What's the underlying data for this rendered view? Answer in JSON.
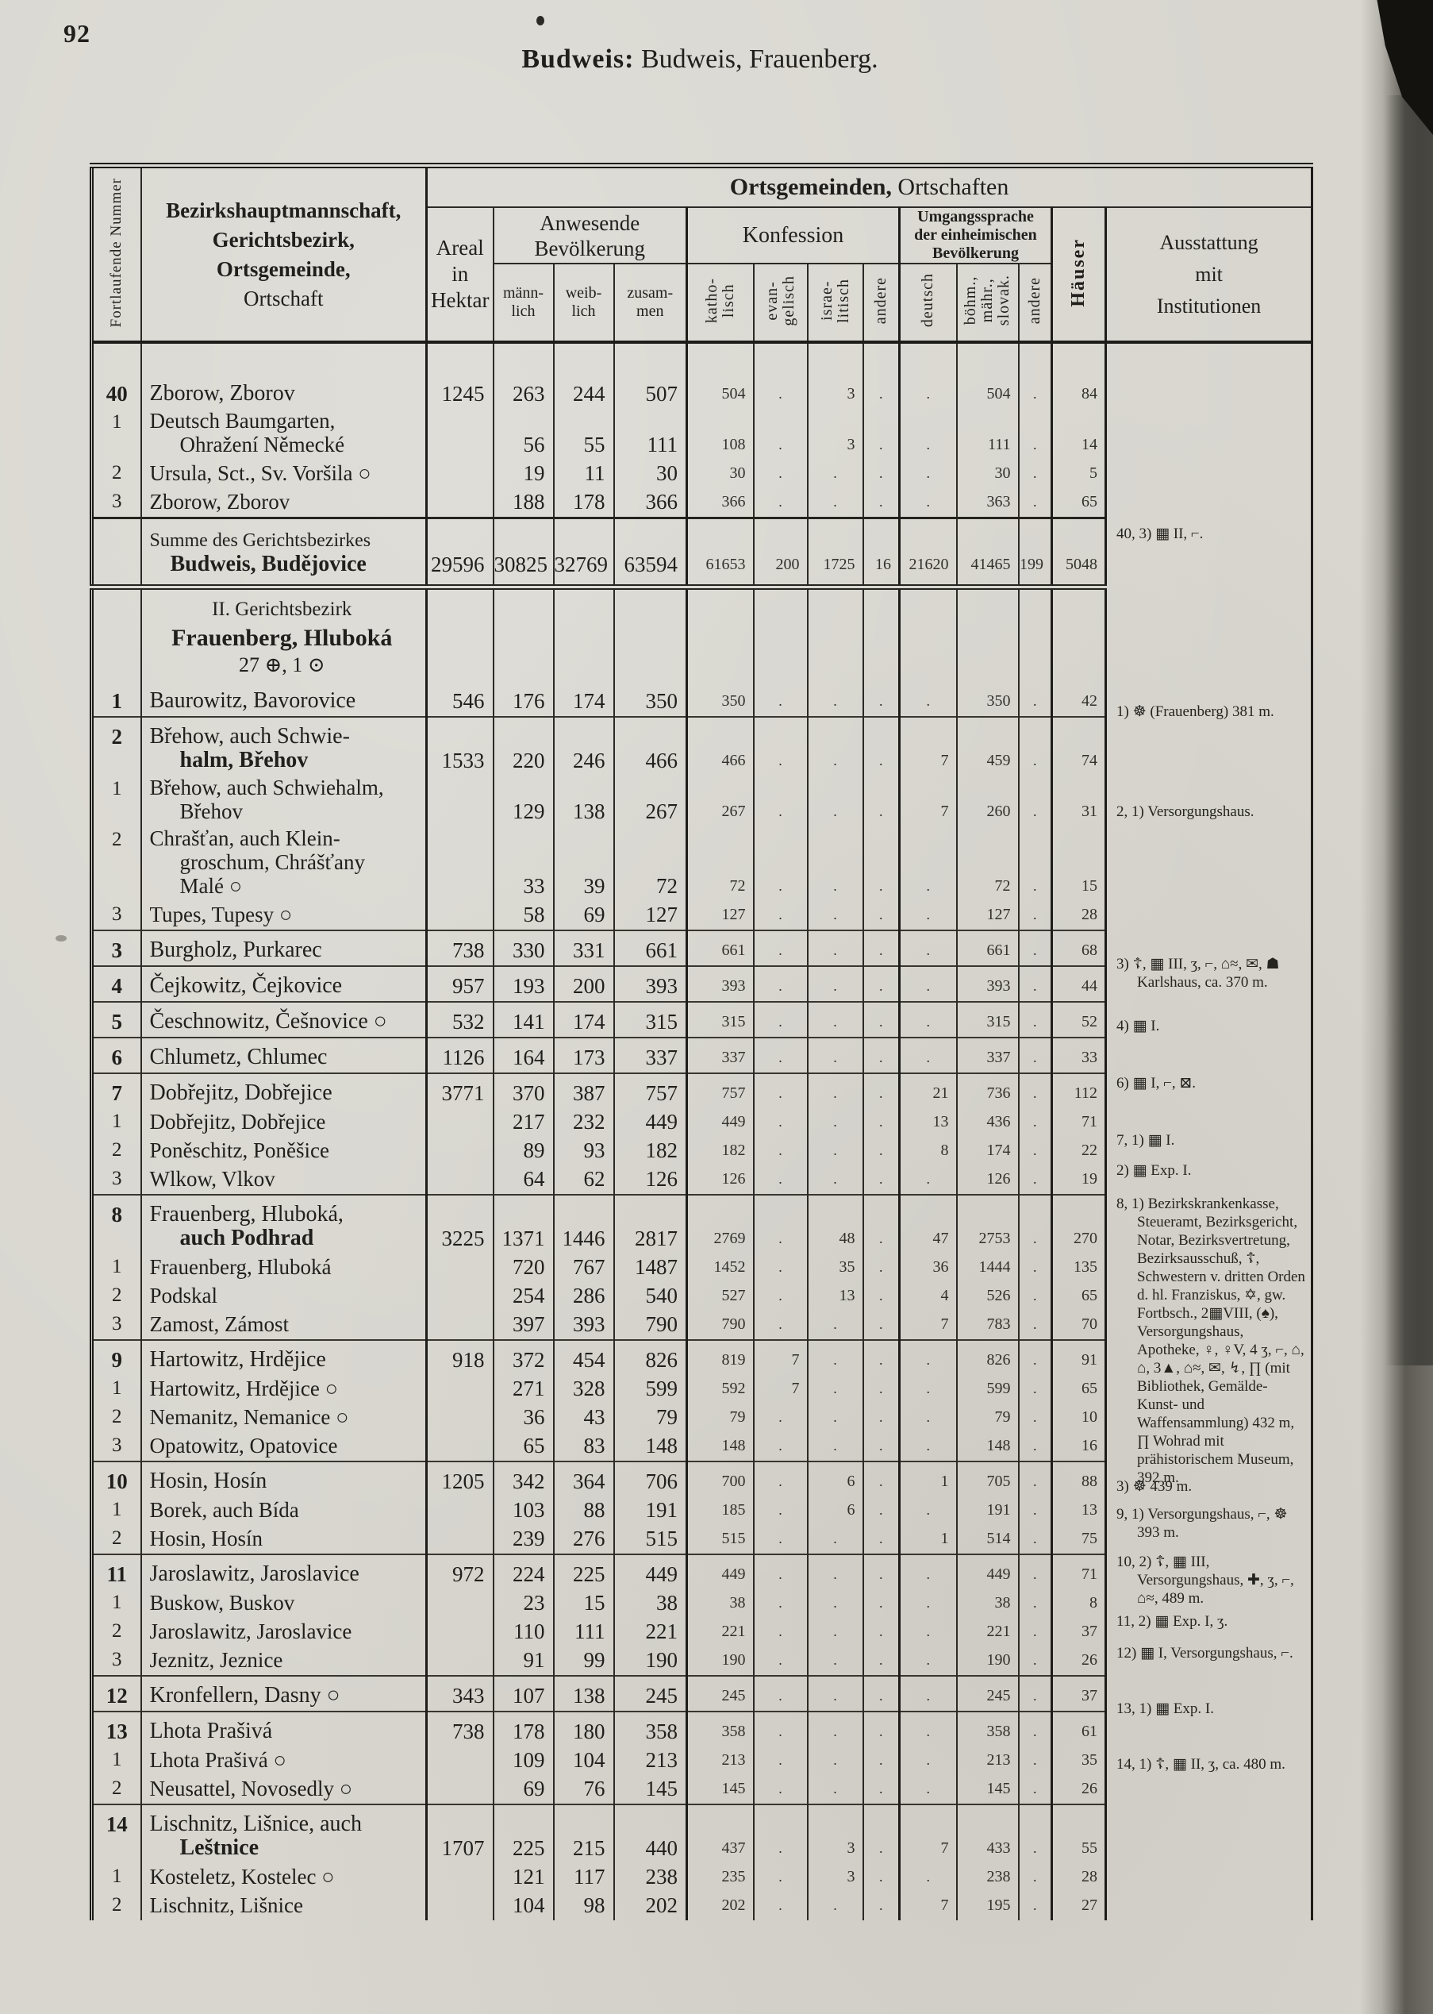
{
  "page": {
    "number": "92",
    "title_bold": "Budweis:",
    "title_rest": " Budweis, Frauenberg."
  },
  "table": {
    "headers": {
      "col_num": "Fortlaufende Nummer",
      "name_lines": [
        "Bezirkshauptmannschaft,",
        "Gerichtsbezirk,",
        "Ortsgemeinde,",
        "Ortschaft"
      ],
      "span_top_bold": "Ortsgemeinden,",
      "span_top_rest": " Ortschaften",
      "areal_lines": [
        "Areal",
        "in",
        "Hektar"
      ],
      "bevoelkerung": "Anwesende Bevölkerung",
      "bev_sub": [
        [
          "männ-",
          "lich"
        ],
        [
          "weib-",
          "lich"
        ],
        [
          "zusam-",
          "men"
        ]
      ],
      "konfession": "Konfession",
      "konf_sub": [
        [
          "katho-",
          "lisch"
        ],
        [
          "evan-",
          "gelisch"
        ],
        [
          "israe-",
          "litisch"
        ],
        [
          "andere"
        ]
      ],
      "sprache_lines": [
        "Umgangssprache",
        "der einheimischen",
        "Bevölkerung"
      ],
      "sprache_sub": [
        [
          "deutsch"
        ],
        [
          "böhm.,",
          "mähr.,",
          "slovak."
        ],
        [
          "andere"
        ]
      ],
      "haeuser": "Häuser",
      "ausstattung_lines": [
        "Ausstattung",
        "mit",
        "Institutionen"
      ]
    },
    "rows": [
      {
        "t": "group",
        "n": "40",
        "lines": [
          "Zborow, Zborov"
        ],
        "v": [
          "1245",
          "263",
          "244",
          "507",
          "504",
          ".",
          "3",
          ".",
          ".",
          "504",
          ".",
          "84"
        ],
        "nt": 1
      },
      {
        "t": "sub",
        "n": "1",
        "lines": [
          "Deutsch Baumgarten,",
          "Ohražení Německé"
        ],
        "v": [
          "",
          "56",
          "55",
          "111",
          "108",
          ".",
          "3",
          ".",
          ".",
          "111",
          ".",
          "14"
        ]
      },
      {
        "t": "sub",
        "n": "2",
        "lines": [
          "Ursula, Sct., Sv. Voršila ○"
        ],
        "v": [
          "",
          "19",
          "11",
          "30",
          "30",
          ".",
          ".",
          ".",
          ".",
          "30",
          ".",
          "5"
        ]
      },
      {
        "t": "sub",
        "n": "3",
        "lines": [
          "Zborow, Zborov"
        ],
        "v": [
          "",
          "188",
          "178",
          "366",
          "366",
          ".",
          ".",
          ".",
          ".",
          "363",
          ".",
          "65"
        ]
      },
      {
        "t": "summe",
        "n": "",
        "lines": [
          "Summe des Gerichtsbezirkes",
          "Budweis, Budějovice"
        ],
        "v": [
          "29596",
          "30825",
          "32769",
          "63594",
          "61653",
          "200",
          "1725",
          "16",
          "21620",
          "41465",
          "199",
          "5048"
        ]
      },
      {
        "t": "section",
        "n": "",
        "lines": [
          "II. Gerichtsbezirk",
          "Frauenberg, Hluboká",
          "27 ⊕, 1 ⊙"
        ]
      },
      {
        "t": "group",
        "n": "1",
        "lines": [
          "Baurowitz, Bavorovice"
        ],
        "v": [
          "546",
          "176",
          "174",
          "350",
          "350",
          ".",
          ".",
          ".",
          ".",
          "350",
          ".",
          "42"
        ],
        "nt": 1
      },
      {
        "t": "group",
        "n": "2",
        "lines": [
          "Břehow, auch Schwie-",
          "halm, Břehov"
        ],
        "v": [
          "1533",
          "220",
          "246",
          "466",
          "466",
          ".",
          ".",
          ".",
          "7",
          "459",
          ".",
          "74"
        ]
      },
      {
        "t": "sub",
        "n": "1",
        "lines": [
          "Břehow, auch Schwiehalm,",
          "Břehov"
        ],
        "v": [
          "",
          "129",
          "138",
          "267",
          "267",
          ".",
          ".",
          ".",
          "7",
          "260",
          ".",
          "31"
        ]
      },
      {
        "t": "sub",
        "n": "2",
        "lines": [
          "Chrašťan, auch Klein-",
          "groschum, Chrášťany",
          "Malé ○"
        ],
        "v": [
          "",
          "33",
          "39",
          "72",
          "72",
          ".",
          ".",
          ".",
          ".",
          "72",
          ".",
          "15"
        ]
      },
      {
        "t": "sub",
        "n": "3",
        "lines": [
          "Tupes, Tupesy ○"
        ],
        "v": [
          "",
          "58",
          "69",
          "127",
          "127",
          ".",
          ".",
          ".",
          ".",
          "127",
          ".",
          "28"
        ]
      },
      {
        "t": "group",
        "n": "3",
        "lines": [
          "Burgholz, Purkarec"
        ],
        "v": [
          "738",
          "330",
          "331",
          "661",
          "661",
          ".",
          ".",
          ".",
          ".",
          "661",
          ".",
          "68"
        ]
      },
      {
        "t": "group",
        "n": "4",
        "lines": [
          "Čejkowitz, Čejkovice"
        ],
        "v": [
          "957",
          "193",
          "200",
          "393",
          "393",
          ".",
          ".",
          ".",
          ".",
          "393",
          ".",
          "44"
        ]
      },
      {
        "t": "group",
        "n": "5",
        "lines": [
          "Česchnowitz, Češnovice ○"
        ],
        "v": [
          "532",
          "141",
          "174",
          "315",
          "315",
          ".",
          ".",
          ".",
          ".",
          "315",
          ".",
          "52"
        ]
      },
      {
        "t": "group",
        "n": "6",
        "lines": [
          "Chlumetz, Chlumec"
        ],
        "v": [
          "1126",
          "164",
          "173",
          "337",
          "337",
          ".",
          ".",
          ".",
          ".",
          "337",
          ".",
          "33"
        ]
      },
      {
        "t": "group",
        "n": "7",
        "lines": [
          "Dobřejitz, Dobřejice"
        ],
        "v": [
          "3771",
          "370",
          "387",
          "757",
          "757",
          ".",
          ".",
          ".",
          "21",
          "736",
          ".",
          "112"
        ]
      },
      {
        "t": "sub",
        "n": "1",
        "lines": [
          "Dobřejitz, Dobřejice"
        ],
        "v": [
          "",
          "217",
          "232",
          "449",
          "449",
          ".",
          ".",
          ".",
          "13",
          "436",
          ".",
          "71"
        ]
      },
      {
        "t": "sub",
        "n": "2",
        "lines": [
          "Poněschitz, Poněšice"
        ],
        "v": [
          "",
          "89",
          "93",
          "182",
          "182",
          ".",
          ".",
          ".",
          "8",
          "174",
          ".",
          "22"
        ]
      },
      {
        "t": "sub",
        "n": "3",
        "lines": [
          "Wlkow, Vlkov"
        ],
        "v": [
          "",
          "64",
          "62",
          "126",
          "126",
          ".",
          ".",
          ".",
          ".",
          "126",
          ".",
          "19"
        ]
      },
      {
        "t": "group",
        "n": "8",
        "lines": [
          "Frauenberg, Hluboká,",
          "auch Podhrad"
        ],
        "v": [
          "3225",
          "1371",
          "1446",
          "2817",
          "2769",
          ".",
          "48",
          ".",
          "47",
          "2753",
          ".",
          "270"
        ]
      },
      {
        "t": "sub",
        "n": "1",
        "lines": [
          "Frauenberg, Hluboká"
        ],
        "v": [
          "",
          "720",
          "767",
          "1487",
          "1452",
          ".",
          "35",
          ".",
          "36",
          "1444",
          ".",
          "135"
        ]
      },
      {
        "t": "sub",
        "n": "2",
        "lines": [
          "Podskal"
        ],
        "v": [
          "",
          "254",
          "286",
          "540",
          "527",
          ".",
          "13",
          ".",
          "4",
          "526",
          ".",
          "65"
        ]
      },
      {
        "t": "sub",
        "n": "3",
        "lines": [
          "Zamost, Zámost"
        ],
        "v": [
          "",
          "397",
          "393",
          "790",
          "790",
          ".",
          ".",
          ".",
          "7",
          "783",
          ".",
          "70"
        ]
      },
      {
        "t": "group",
        "n": "9",
        "lines": [
          "Hartowitz, Hrdějice"
        ],
        "v": [
          "918",
          "372",
          "454",
          "826",
          "819",
          "7",
          ".",
          ".",
          ".",
          "826",
          ".",
          "91"
        ]
      },
      {
        "t": "sub",
        "n": "1",
        "lines": [
          "Hartowitz, Hrdějice ○"
        ],
        "v": [
          "",
          "271",
          "328",
          "599",
          "592",
          "7",
          ".",
          ".",
          ".",
          "599",
          ".",
          "65"
        ]
      },
      {
        "t": "sub",
        "n": "2",
        "lines": [
          "Nemanitz, Nemanice ○"
        ],
        "v": [
          "",
          "36",
          "43",
          "79",
          "79",
          ".",
          ".",
          ".",
          ".",
          "79",
          ".",
          "10"
        ]
      },
      {
        "t": "sub",
        "n": "3",
        "lines": [
          "Opatowitz, Opatovice"
        ],
        "v": [
          "",
          "65",
          "83",
          "148",
          "148",
          ".",
          ".",
          ".",
          ".",
          "148",
          ".",
          "16"
        ]
      },
      {
        "t": "group",
        "n": "10",
        "lines": [
          "Hosin, Hosín"
        ],
        "v": [
          "1205",
          "342",
          "364",
          "706",
          "700",
          ".",
          "6",
          ".",
          "1",
          "705",
          ".",
          "88"
        ]
      },
      {
        "t": "sub",
        "n": "1",
        "lines": [
          "Borek, auch Bída"
        ],
        "v": [
          "",
          "103",
          "88",
          "191",
          "185",
          ".",
          "6",
          ".",
          ".",
          "191",
          ".",
          "13"
        ]
      },
      {
        "t": "sub",
        "n": "2",
        "lines": [
          "Hosin, Hosín"
        ],
        "v": [
          "",
          "239",
          "276",
          "515",
          "515",
          ".",
          ".",
          ".",
          "1",
          "514",
          ".",
          "75"
        ]
      },
      {
        "t": "group",
        "n": "11",
        "lines": [
          "Jaroslawitz, Jaroslavice"
        ],
        "v": [
          "972",
          "224",
          "225",
          "449",
          "449",
          ".",
          ".",
          ".",
          ".",
          "449",
          ".",
          "71"
        ]
      },
      {
        "t": "sub",
        "n": "1",
        "lines": [
          "Buskow, Buskov"
        ],
        "v": [
          "",
          "23",
          "15",
          "38",
          "38",
          ".",
          ".",
          ".",
          ".",
          "38",
          ".",
          "8"
        ]
      },
      {
        "t": "sub",
        "n": "2",
        "lines": [
          "Jaroslawitz, Jaroslavice"
        ],
        "v": [
          "",
          "110",
          "111",
          "221",
          "221",
          ".",
          ".",
          ".",
          ".",
          "221",
          ".",
          "37"
        ]
      },
      {
        "t": "sub",
        "n": "3",
        "lines": [
          "Jeznitz, Jeznice"
        ],
        "v": [
          "",
          "91",
          "99",
          "190",
          "190",
          ".",
          ".",
          ".",
          ".",
          "190",
          ".",
          "26"
        ]
      },
      {
        "t": "group",
        "n": "12",
        "lines": [
          "Kronfellern, Dasny ○"
        ],
        "v": [
          "343",
          "107",
          "138",
          "245",
          "245",
          ".",
          ".",
          ".",
          ".",
          "245",
          ".",
          "37"
        ]
      },
      {
        "t": "group",
        "n": "13",
        "lines": [
          "Lhota Prašivá"
        ],
        "v": [
          "738",
          "178",
          "180",
          "358",
          "358",
          ".",
          ".",
          ".",
          ".",
          "358",
          ".",
          "61"
        ]
      },
      {
        "t": "sub",
        "n": "1",
        "lines": [
          "Lhota Prašivá ○"
        ],
        "v": [
          "",
          "109",
          "104",
          "213",
          "213",
          ".",
          ".",
          ".",
          ".",
          "213",
          ".",
          "35"
        ]
      },
      {
        "t": "sub",
        "n": "2",
        "lines": [
          "Neusattel, Novosedly ○"
        ],
        "v": [
          "",
          "69",
          "76",
          "145",
          "145",
          ".",
          ".",
          ".",
          ".",
          "145",
          ".",
          "26"
        ]
      },
      {
        "t": "group",
        "n": "14",
        "lines": [
          "Lischnitz, Lišnice, auch",
          "Leštnice"
        ],
        "v": [
          "1707",
          "225",
          "215",
          "440",
          "437",
          ".",
          "3",
          ".",
          "7",
          "433",
          ".",
          "55"
        ]
      },
      {
        "t": "sub",
        "n": "1",
        "lines": [
          "Kosteletz, Kostelec ○"
        ],
        "v": [
          "",
          "121",
          "117",
          "238",
          "235",
          ".",
          "3",
          ".",
          ".",
          "238",
          ".",
          "28"
        ]
      },
      {
        "t": "sub",
        "n": "2",
        "lines": [
          "Lischnitz, Lišnice"
        ],
        "v": [
          "",
          "104",
          "98",
          "202",
          "202",
          ".",
          ".",
          ".",
          "7",
          "195",
          ".",
          "27"
        ]
      }
    ],
    "institution_notes": [
      {
        "text": "40, 3) ▦ II, ⌐."
      },
      {
        "text": "1) ☸ (Frauenberg) 381 m."
      },
      {
        "text": "2, 1) Versorgungshaus."
      },
      {
        "text": "3) ☦, ▦ III, ʒ, ⌐, ⌂≈, ✉, ☗ Karlshaus, ca. 370 m."
      },
      {
        "text": "4) ▦ I."
      },
      {
        "text": "6) ▦ I, ⌐, ⊠."
      },
      {
        "text": "7, 1) ▦ I."
      },
      {
        "text": "2) ▦ Exp. I."
      },
      {
        "text": "8, 1) Bezirkskrankenkasse, Steueramt, Bezirksgericht, Notar, Bezirksvertretung, Bezirksausschuß, ☦, Schwestern v. dritten Orden d. hl. Franziskus, ✡, gw. Fortbsch., 2▦VIII, (♠), Versorgungshaus, Apotheke, ♀, ♀V, 4 ʒ, ⌐, ⌂, ⌂, 3▲, ⌂≈, ✉, ↯, ∏ (mit Bibliothek, Gemälde- Kunst- und Waffensammlung) 432 m, ∏ Wohrad mit prähistorischem Museum, 392 m."
      },
      {
        "text": "3) ☸ 439 m."
      },
      {
        "text": "9, 1) Versorgungshaus, ⌐, ☸ 393 m."
      },
      {
        "text": "10, 2) ☦, ▦ III, Versorgungshaus, ✚, ʒ, ⌐, ⌂≈, 489 m."
      },
      {
        "text": "11, 2) ▦ Exp. I, ʒ."
      },
      {
        "text": "12) ▦ I, Versorgungshaus, ⌐."
      },
      {
        "text": "13, 1) ▦ Exp. I."
      },
      {
        "text": "14, 1) ☦, ▦ II, ʒ, ca. 480 m."
      }
    ]
  },
  "colors": {
    "paper": "#d8d6cf",
    "ink": "#211f1c",
    "scan_shadow": "#5d5b54"
  }
}
